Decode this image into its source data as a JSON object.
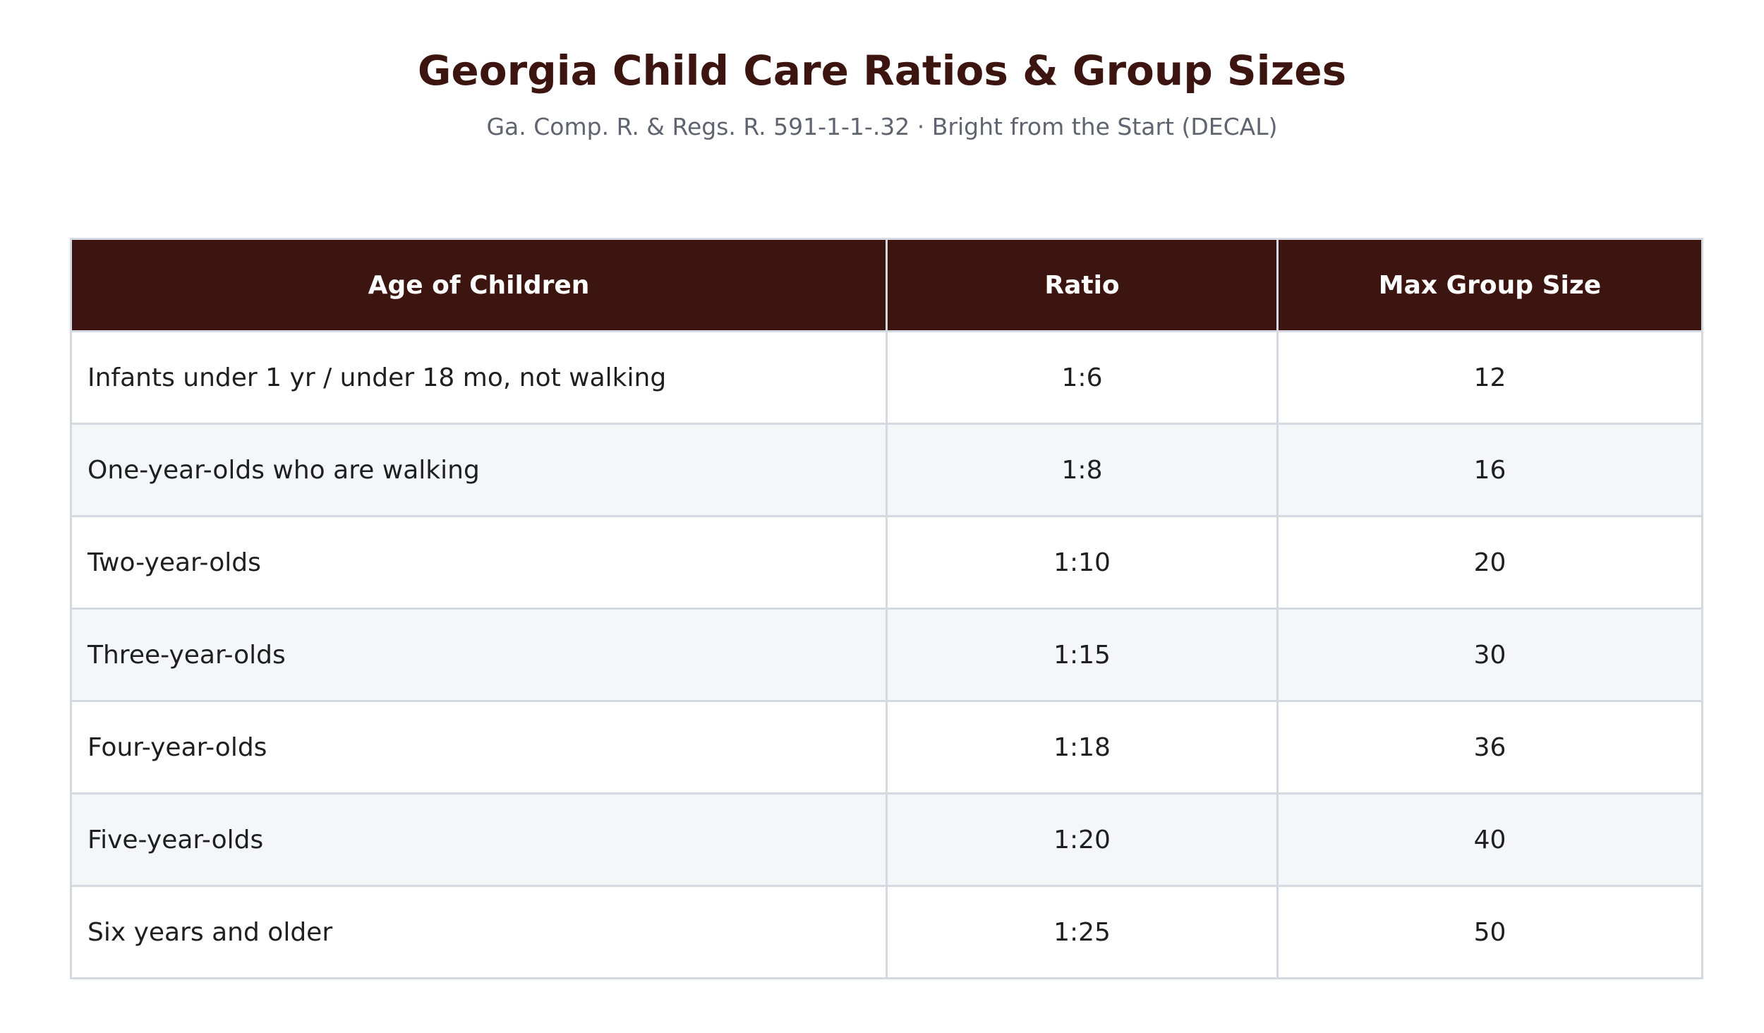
{
  "header": {
    "title": "Georgia Child Care Ratios & Group Sizes",
    "subtitle": "Ga. Comp. R. & Regs. R. 591-1-1-.32 · Bright from the Start (DECAL)"
  },
  "table": {
    "columns": [
      "Age of Children",
      "Ratio",
      "Max Group Size"
    ],
    "rows": [
      {
        "age": "Infants under 1 yr / under 18 mo, not walking",
        "ratio": "1:6",
        "max_group": "12"
      },
      {
        "age": "One-year-olds who are walking",
        "ratio": "1:8",
        "max_group": "16"
      },
      {
        "age": "Two-year-olds",
        "ratio": "1:10",
        "max_group": "20"
      },
      {
        "age": "Three-year-olds",
        "ratio": "1:15",
        "max_group": "30"
      },
      {
        "age": "Four-year-olds",
        "ratio": "1:18",
        "max_group": "36"
      },
      {
        "age": "Five-year-olds",
        "ratio": "1:20",
        "max_group": "40"
      },
      {
        "age": "Six years and older",
        "ratio": "1:25",
        "max_group": "50"
      }
    ]
  },
  "colors": {
    "header_background": "#3d1510",
    "title_text": "#3d1510",
    "subtitle_text": "#5f6470",
    "alt_row_background": "#f4f6fa",
    "border": "#d5dae2"
  }
}
